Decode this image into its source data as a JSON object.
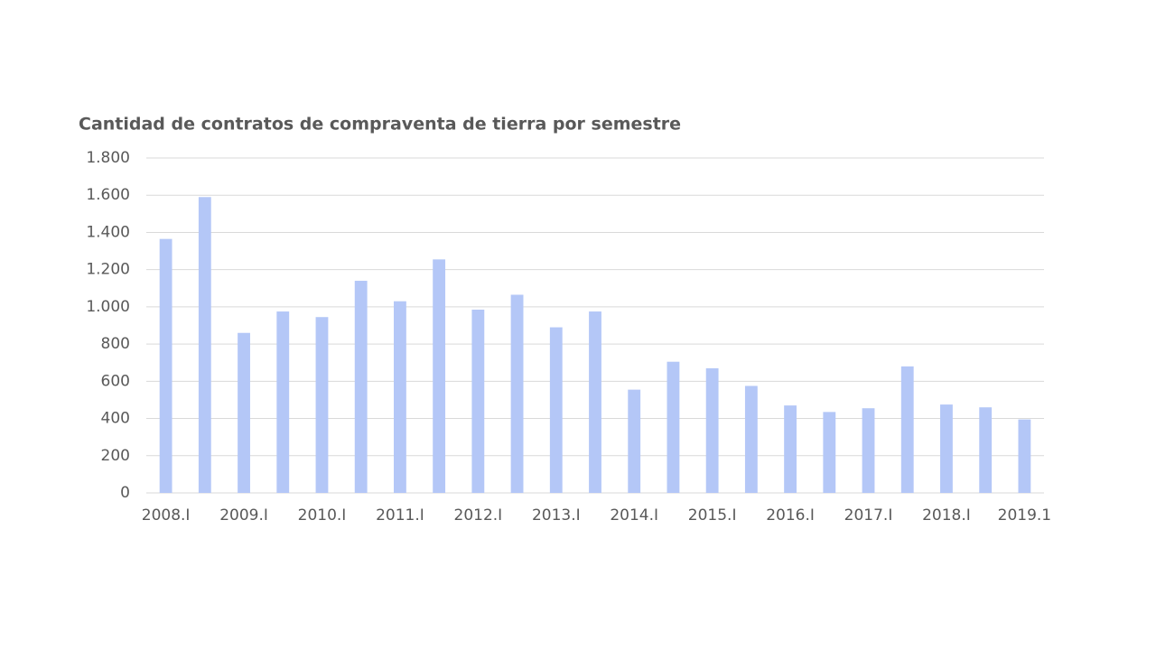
{
  "chart_data": {
    "type": "bar",
    "title": "Cantidad de contratos de compraventa de tierra por semestre",
    "categories": [
      "2008.I",
      null,
      "2009.I",
      null,
      "2010.I",
      null,
      "2011.I",
      null,
      "2012.I",
      null,
      "2013.I",
      null,
      "2014.I",
      null,
      "2015.I",
      null,
      "2016.I",
      null,
      "2017.I",
      null,
      "2018.I",
      null,
      "2019.1"
    ],
    "values": [
      1365,
      1590,
      860,
      975,
      945,
      1140,
      1030,
      1255,
      985,
      1065,
      890,
      975,
      555,
      705,
      670,
      575,
      470,
      435,
      455,
      680,
      475,
      460,
      395
    ],
    "color": "#b4c7f7",
    "ylim": [
      0,
      1800
    ],
    "yticks": [
      0,
      200,
      400,
      600,
      800,
      {
        "value": 1000,
        "label": "1.000"
      },
      {
        "value": 1200,
        "label": "1.200"
      },
      {
        "value": 1400,
        "label": "1.400"
      },
      {
        "value": 1600,
        "label": "1.600"
      },
      {
        "value": 1800,
        "label": "1.800"
      }
    ],
    "grid": true
  }
}
